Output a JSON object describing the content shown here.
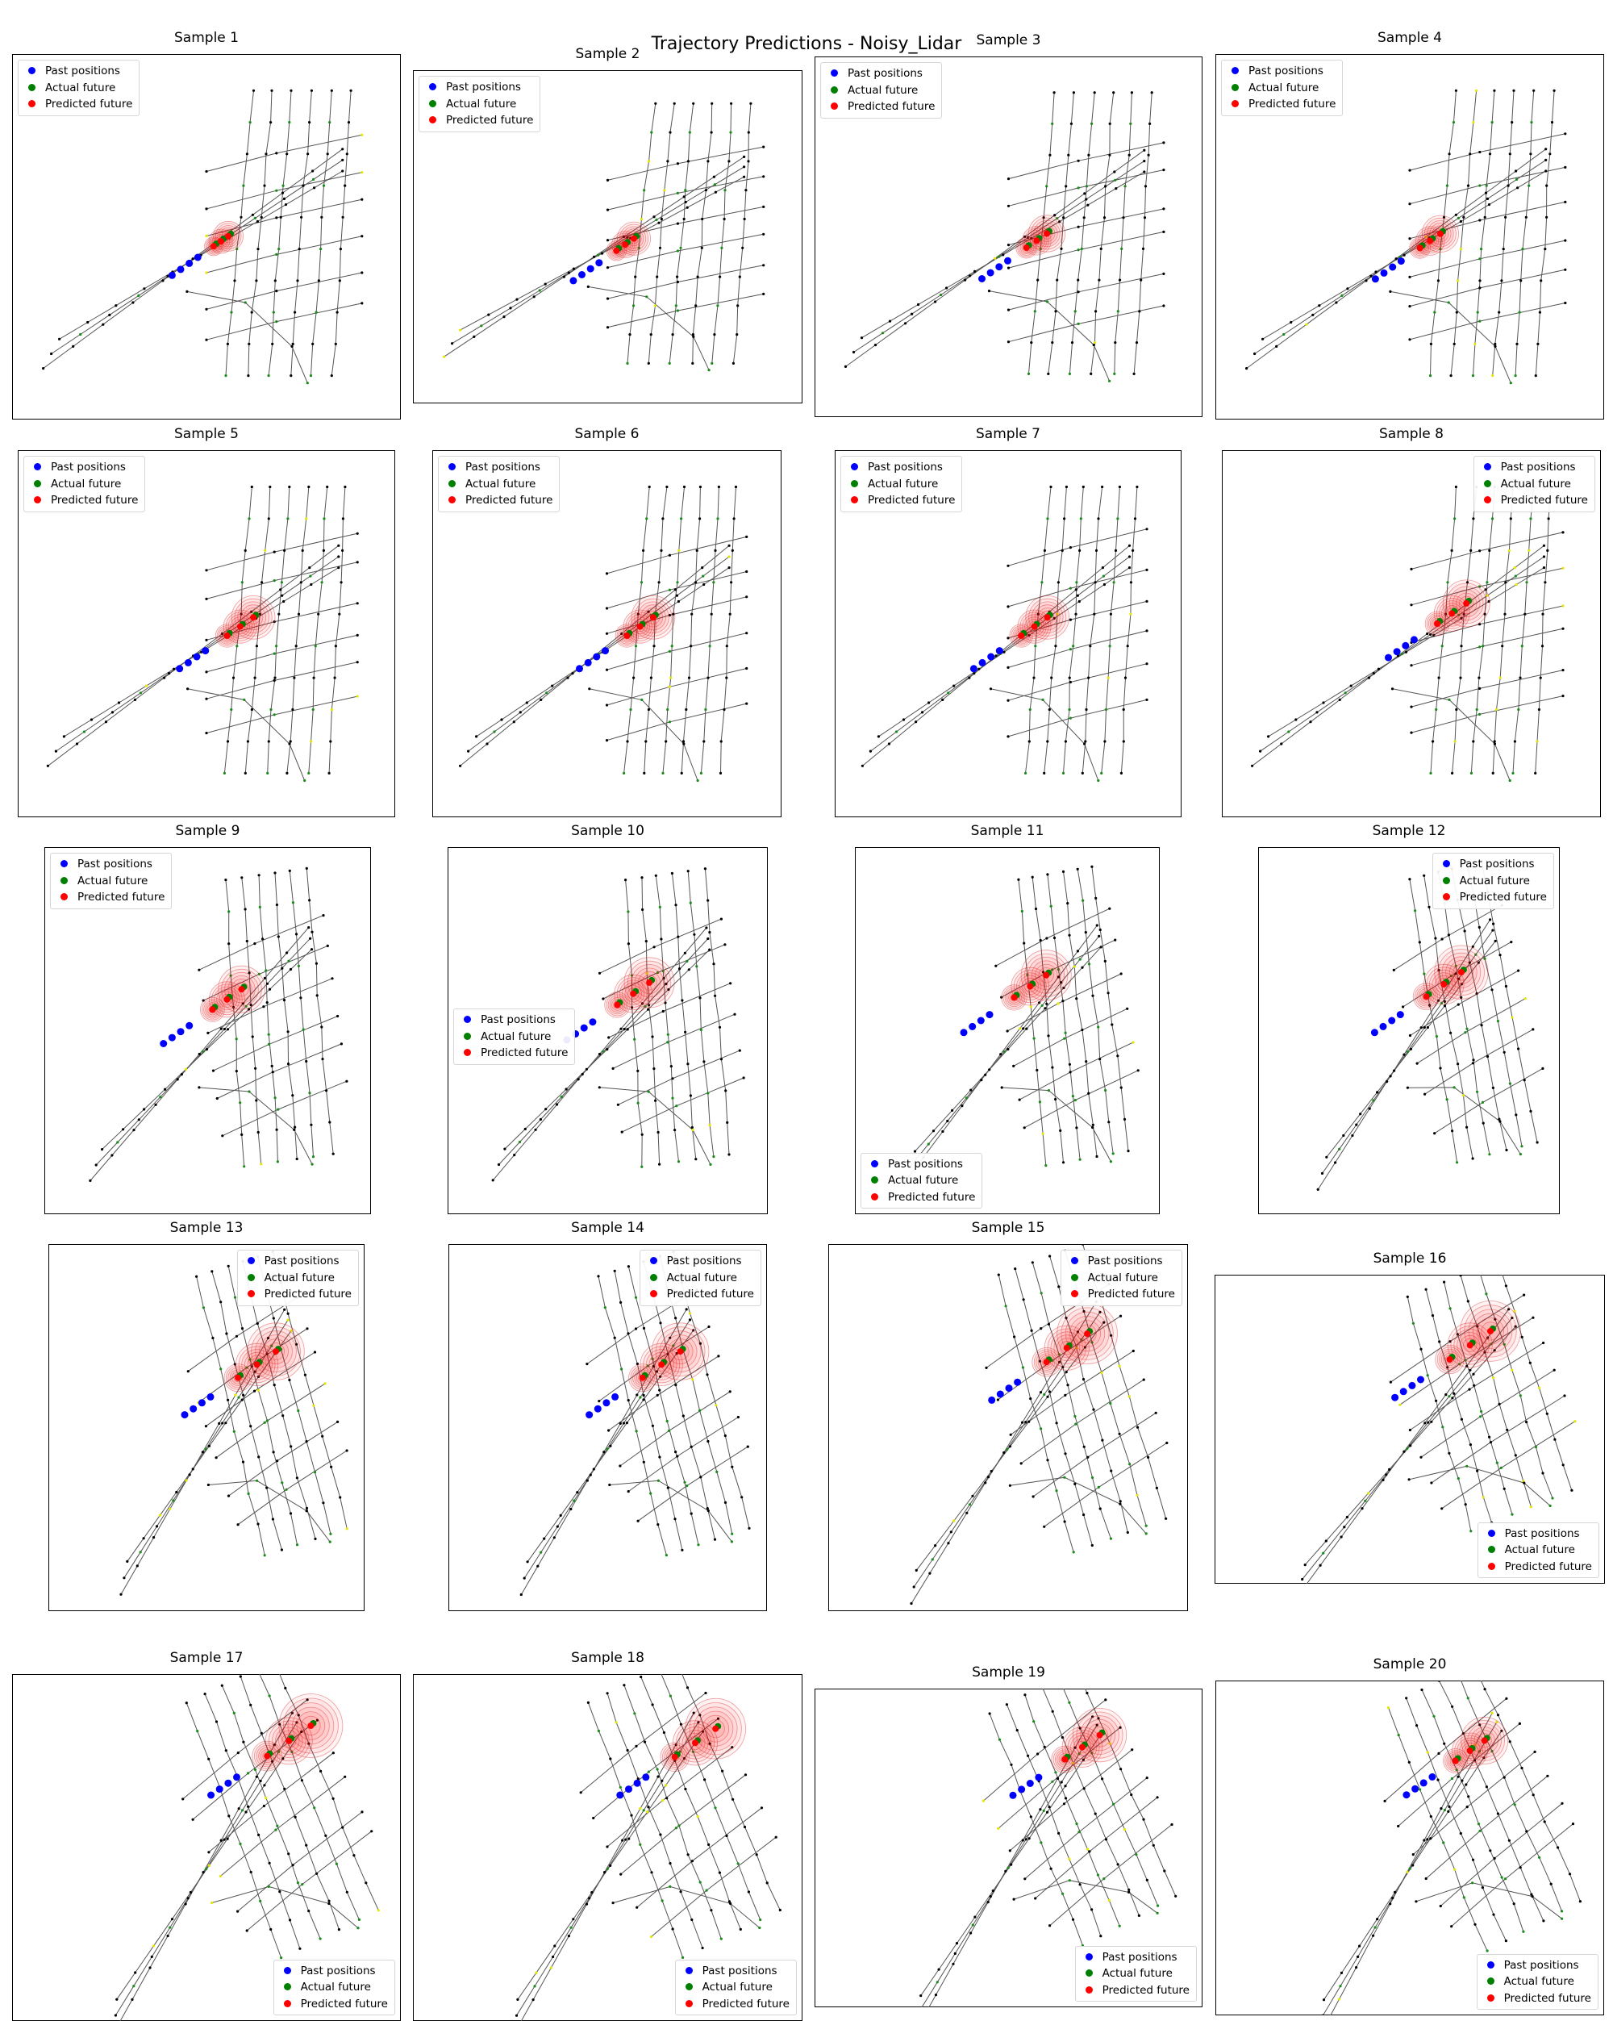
{
  "title": "Trajectory Predictions - Noisy_Lidar",
  "legend": {
    "past": "Past positions",
    "actual": "Actual future",
    "predicted": "Predicted future"
  },
  "colors": {
    "past": "#0000ff",
    "actual": "#008000",
    "predicted": "#ff0000",
    "lane": "#555555",
    "node": "#000000",
    "node_green": "#1a8a1a",
    "node_yellow": "#e6e600"
  },
  "chart_data": [
    {
      "type": "scatter",
      "title": "Sample 1",
      "legend_loc": "upper left",
      "map_angle": 0,
      "agent": [
        0.5,
        0.54
      ],
      "spread": 0.5
    },
    {
      "type": "scatter",
      "title": "Sample 2",
      "legend_loc": "upper left",
      "map_angle": 0,
      "agent": [
        0.5,
        0.56
      ],
      "spread": 0.6
    },
    {
      "type": "scatter",
      "title": "Sample 3",
      "legend_loc": "upper left",
      "map_angle": 0,
      "agent": [
        0.52,
        0.55
      ],
      "spread": 0.7
    },
    {
      "type": "scatter",
      "title": "Sample 4",
      "legend_loc": "upper left",
      "map_angle": 0,
      "agent": [
        0.5,
        0.55
      ],
      "spread": 0.7
    },
    {
      "type": "scatter",
      "title": "Sample 5",
      "legend_loc": "upper left",
      "map_angle": 0,
      "agent": [
        0.52,
        0.53
      ],
      "spread": 0.9
    },
    {
      "type": "scatter",
      "title": "Sample 6",
      "legend_loc": "upper left",
      "map_angle": 0,
      "agent": [
        0.52,
        0.53
      ],
      "spread": 0.9
    },
    {
      "type": "scatter",
      "title": "Sample 7",
      "legend_loc": "upper left",
      "map_angle": 0,
      "agent": [
        0.5,
        0.53
      ],
      "spread": 0.9
    },
    {
      "type": "scatter",
      "title": "Sample 8",
      "legend_loc": "upper right",
      "map_angle": 0,
      "agent": [
        0.53,
        0.5
      ],
      "spread": 1.0
    },
    {
      "type": "scatter",
      "title": "Sample 9",
      "legend_loc": "upper left",
      "map_angle": -8,
      "agent": [
        0.47,
        0.47
      ],
      "spread": 1.0
    },
    {
      "type": "scatter",
      "title": "Sample 10",
      "legend_loc": "center left",
      "map_angle": -8,
      "agent": [
        0.48,
        0.46
      ],
      "spread": 1.1
    },
    {
      "type": "scatter",
      "title": "Sample 11",
      "legend_loc": "lower left",
      "map_angle": -10,
      "agent": [
        0.47,
        0.44
      ],
      "spread": 1.1
    },
    {
      "type": "scatter",
      "title": "Sample 12",
      "legend_loc": "upper right",
      "map_angle": -14,
      "agent": [
        0.5,
        0.44
      ],
      "spread": 1.2
    },
    {
      "type": "scatter",
      "title": "Sample 13",
      "legend_loc": "upper right",
      "map_angle": -18,
      "agent": [
        0.54,
        0.4
      ],
      "spread": 1.3
    },
    {
      "type": "scatter",
      "title": "Sample 14",
      "legend_loc": "upper right",
      "map_angle": -18,
      "agent": [
        0.55,
        0.4
      ],
      "spread": 1.3
    },
    {
      "type": "scatter",
      "title": "Sample 15",
      "legend_loc": "upper right",
      "map_angle": -20,
      "agent": [
        0.55,
        0.36
      ],
      "spread": 1.4
    },
    {
      "type": "scatter",
      "title": "Sample 16",
      "legend_loc": "lower right",
      "map_angle": -22,
      "agent": [
        0.55,
        0.32
      ],
      "spread": 1.4
    },
    {
      "type": "scatter",
      "title": "Sample 17",
      "legend_loc": "lower right",
      "map_angle": -26,
      "agent": [
        0.6,
        0.28
      ],
      "spread": 1.5
    },
    {
      "type": "scatter",
      "title": "Sample 18",
      "legend_loc": "lower right",
      "map_angle": -26,
      "agent": [
        0.62,
        0.28
      ],
      "spread": 1.4
    },
    {
      "type": "scatter",
      "title": "Sample 19",
      "legend_loc": "lower right",
      "map_angle": -28,
      "agent": [
        0.6,
        0.26
      ],
      "spread": 1.2
    },
    {
      "type": "scatter",
      "title": "Sample 20",
      "legend_loc": "lower right",
      "map_angle": -28,
      "agent": [
        0.58,
        0.27
      ],
      "spread": 1.0
    }
  ]
}
